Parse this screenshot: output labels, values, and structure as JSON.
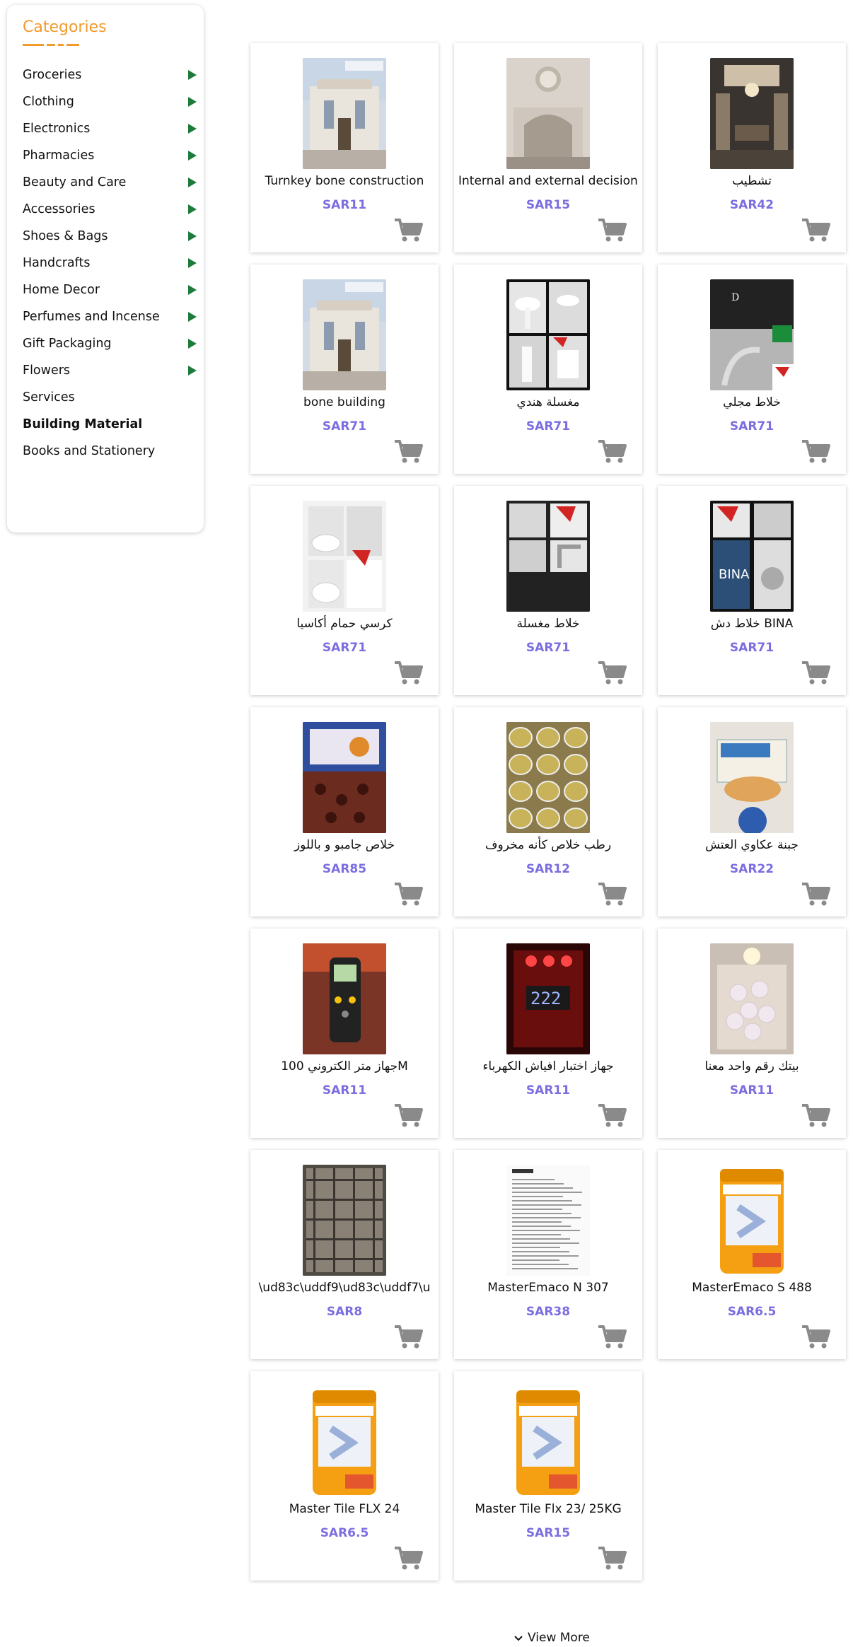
{
  "sidebar": {
    "title": "Categories",
    "accent_color": "#f39a2c",
    "arrow_color": "#1e7b3c",
    "items": [
      {
        "label": "Groceries",
        "has_children": true
      },
      {
        "label": "Clothing",
        "has_children": true
      },
      {
        "label": "Electronics",
        "has_children": true
      },
      {
        "label": "Pharmacies",
        "has_children": true
      },
      {
        "label": "Beauty and Care",
        "has_children": true
      },
      {
        "label": "Accessories",
        "has_children": true
      },
      {
        "label": "Shoes & Bags",
        "has_children": true
      },
      {
        "label": "Handcrafts",
        "has_children": true
      },
      {
        "label": "Home Decor",
        "has_children": true
      },
      {
        "label": "Perfumes and Incense",
        "has_children": true
      },
      {
        "label": "Gift Packaging",
        "has_children": true
      },
      {
        "label": "Flowers",
        "has_children": true
      },
      {
        "label": "Services",
        "has_children": false
      },
      {
        "label": "Building Material",
        "has_children": false,
        "active": true
      },
      {
        "label": "Books and Stationery",
        "has_children": false
      }
    ]
  },
  "products": [
    {
      "name": "Turnkey bone construction",
      "price": "SAR11",
      "image": "villa-facade"
    },
    {
      "name": "Internal and external decisions",
      "price": "SAR15",
      "image": "interior-wall"
    },
    {
      "name": "تشطيب",
      "price": "SAR42",
      "image": "luxury-hall"
    },
    {
      "name": "bone building",
      "price": "SAR71",
      "image": "villa-facade"
    },
    {
      "name": "مغسلة هندي",
      "price": "SAR71",
      "image": "sink-collage"
    },
    {
      "name": "خلاط مجلي",
      "price": "SAR71",
      "image": "mixer-dark"
    },
    {
      "name": "كرسي حمام أكاسيا",
      "price": "SAR71",
      "image": "toilet"
    },
    {
      "name": "خلاط مغسلة",
      "price": "SAR71",
      "image": "faucet"
    },
    {
      "name": "خلاط دش BINA",
      "price": "SAR71",
      "image": "shower-bina"
    },
    {
      "name": "خلاص جامبو و باللوز",
      "price": "SAR85",
      "image": "dates-box"
    },
    {
      "name": "رطب خلاص كأنه مخروف",
      "price": "SAR12",
      "image": "dates-trays"
    },
    {
      "name": "جبنة عكاوي العتش",
      "price": "SAR22",
      "image": "cheese"
    },
    {
      "name": "جهاز متر الكتروني 100M",
      "price": "SAR11",
      "image": "laser-meter"
    },
    {
      "name": "جهاز اختبار افياش الكهرباء",
      "price": "SAR11",
      "image": "socket-tester"
    },
    {
      "name": "بيتك رقم واحد معنا",
      "price": "SAR11",
      "image": "decor-wall"
    },
    {
      "name": "\\ud83c\\uddf9\\ud83c\\uddf7\\u",
      "price": "SAR8",
      "image": "scaffold"
    },
    {
      "name": "MasterEmaco N 307",
      "price": "SAR38",
      "image": "datasheet"
    },
    {
      "name": "MasterEmaco S 488",
      "price": "SAR6.5",
      "image": "cement-bag"
    },
    {
      "name": "Master Tile FLX 24",
      "price": "SAR6.5",
      "image": "cement-bag"
    },
    {
      "name": "Master Tile Flx 23/ 25KG",
      "price": "SAR15",
      "image": "cement-bag"
    }
  ],
  "price_color": "#7b6ee0",
  "cart_icon": "shopping-cart-icon",
  "view_more": {
    "label": "View More",
    "icon": "chevron-down-icon"
  }
}
